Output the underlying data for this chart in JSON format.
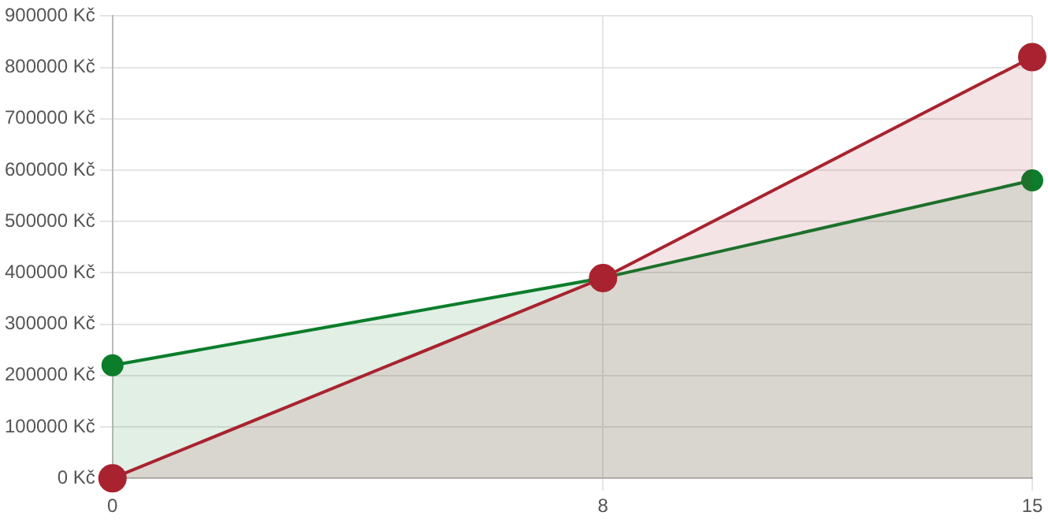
{
  "chart_data": {
    "type": "area",
    "x": [
      0,
      8,
      15
    ],
    "xlim": [
      0,
      15
    ],
    "xticks": [
      0,
      8,
      15
    ],
    "ylim": [
      0,
      900000
    ],
    "yticks": [
      {
        "value": 0,
        "label": "0 Kč"
      },
      {
        "value": 100000,
        "label": "100000 Kč"
      },
      {
        "value": 200000,
        "label": "200000 Kč"
      },
      {
        "value": 300000,
        "label": "300000 Kč"
      },
      {
        "value": 400000,
        "label": "400000 Kč"
      },
      {
        "value": 500000,
        "label": "500000 Kč"
      },
      {
        "value": 600000,
        "label": "600000 Kč"
      },
      {
        "value": 700000,
        "label": "700000 Kč"
      },
      {
        "value": 800000,
        "label": "800000 Kč"
      },
      {
        "value": 900000,
        "label": "900000 Kč"
      }
    ],
    "series": [
      {
        "color": "#0b7d2b",
        "values": [
          220000,
          390000,
          580000
        ]
      },
      {
        "color": "#a8232f",
        "values": [
          0,
          390000,
          820000
        ]
      }
    ],
    "grid": true,
    "marker": "circle",
    "line_style": "solid",
    "legend": false
  }
}
